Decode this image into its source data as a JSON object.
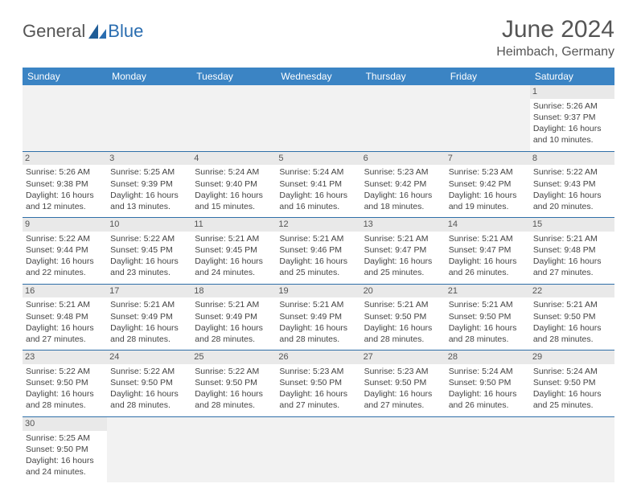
{
  "brand": {
    "first": "General",
    "second": "Blue"
  },
  "title": {
    "month": "June 2024",
    "location": "Heimbach, Germany"
  },
  "colors": {
    "header_bg": "#3b84c4",
    "header_text": "#ffffff",
    "row_divider": "#2f6fa8",
    "daynum_bg": "#e9e9e9",
    "empty_bg": "#f2f2f2",
    "text": "#444444",
    "brand_blue": "#2a6db0"
  },
  "weekdays": [
    "Sunday",
    "Monday",
    "Tuesday",
    "Wednesday",
    "Thursday",
    "Friday",
    "Saturday"
  ],
  "labels": {
    "sunrise": "Sunrise:",
    "sunset": "Sunset:",
    "daylight": "Daylight:"
  },
  "weeks": [
    [
      null,
      null,
      null,
      null,
      null,
      null,
      {
        "n": "1",
        "sunrise": "5:26 AM",
        "sunset": "9:37 PM",
        "daylight": "16 hours and 10 minutes."
      }
    ],
    [
      {
        "n": "2",
        "sunrise": "5:26 AM",
        "sunset": "9:38 PM",
        "daylight": "16 hours and 12 minutes."
      },
      {
        "n": "3",
        "sunrise": "5:25 AM",
        "sunset": "9:39 PM",
        "daylight": "16 hours and 13 minutes."
      },
      {
        "n": "4",
        "sunrise": "5:24 AM",
        "sunset": "9:40 PM",
        "daylight": "16 hours and 15 minutes."
      },
      {
        "n": "5",
        "sunrise": "5:24 AM",
        "sunset": "9:41 PM",
        "daylight": "16 hours and 16 minutes."
      },
      {
        "n": "6",
        "sunrise": "5:23 AM",
        "sunset": "9:42 PM",
        "daylight": "16 hours and 18 minutes."
      },
      {
        "n": "7",
        "sunrise": "5:23 AM",
        "sunset": "9:42 PM",
        "daylight": "16 hours and 19 minutes."
      },
      {
        "n": "8",
        "sunrise": "5:22 AM",
        "sunset": "9:43 PM",
        "daylight": "16 hours and 20 minutes."
      }
    ],
    [
      {
        "n": "9",
        "sunrise": "5:22 AM",
        "sunset": "9:44 PM",
        "daylight": "16 hours and 22 minutes."
      },
      {
        "n": "10",
        "sunrise": "5:22 AM",
        "sunset": "9:45 PM",
        "daylight": "16 hours and 23 minutes."
      },
      {
        "n": "11",
        "sunrise": "5:21 AM",
        "sunset": "9:45 PM",
        "daylight": "16 hours and 24 minutes."
      },
      {
        "n": "12",
        "sunrise": "5:21 AM",
        "sunset": "9:46 PM",
        "daylight": "16 hours and 25 minutes."
      },
      {
        "n": "13",
        "sunrise": "5:21 AM",
        "sunset": "9:47 PM",
        "daylight": "16 hours and 25 minutes."
      },
      {
        "n": "14",
        "sunrise": "5:21 AM",
        "sunset": "9:47 PM",
        "daylight": "16 hours and 26 minutes."
      },
      {
        "n": "15",
        "sunrise": "5:21 AM",
        "sunset": "9:48 PM",
        "daylight": "16 hours and 27 minutes."
      }
    ],
    [
      {
        "n": "16",
        "sunrise": "5:21 AM",
        "sunset": "9:48 PM",
        "daylight": "16 hours and 27 minutes."
      },
      {
        "n": "17",
        "sunrise": "5:21 AM",
        "sunset": "9:49 PM",
        "daylight": "16 hours and 28 minutes."
      },
      {
        "n": "18",
        "sunrise": "5:21 AM",
        "sunset": "9:49 PM",
        "daylight": "16 hours and 28 minutes."
      },
      {
        "n": "19",
        "sunrise": "5:21 AM",
        "sunset": "9:49 PM",
        "daylight": "16 hours and 28 minutes."
      },
      {
        "n": "20",
        "sunrise": "5:21 AM",
        "sunset": "9:50 PM",
        "daylight": "16 hours and 28 minutes."
      },
      {
        "n": "21",
        "sunrise": "5:21 AM",
        "sunset": "9:50 PM",
        "daylight": "16 hours and 28 minutes."
      },
      {
        "n": "22",
        "sunrise": "5:21 AM",
        "sunset": "9:50 PM",
        "daylight": "16 hours and 28 minutes."
      }
    ],
    [
      {
        "n": "23",
        "sunrise": "5:22 AM",
        "sunset": "9:50 PM",
        "daylight": "16 hours and 28 minutes."
      },
      {
        "n": "24",
        "sunrise": "5:22 AM",
        "sunset": "9:50 PM",
        "daylight": "16 hours and 28 minutes."
      },
      {
        "n": "25",
        "sunrise": "5:22 AM",
        "sunset": "9:50 PM",
        "daylight": "16 hours and 28 minutes."
      },
      {
        "n": "26",
        "sunrise": "5:23 AM",
        "sunset": "9:50 PM",
        "daylight": "16 hours and 27 minutes."
      },
      {
        "n": "27",
        "sunrise": "5:23 AM",
        "sunset": "9:50 PM",
        "daylight": "16 hours and 27 minutes."
      },
      {
        "n": "28",
        "sunrise": "5:24 AM",
        "sunset": "9:50 PM",
        "daylight": "16 hours and 26 minutes."
      },
      {
        "n": "29",
        "sunrise": "5:24 AM",
        "sunset": "9:50 PM",
        "daylight": "16 hours and 25 minutes."
      }
    ],
    [
      {
        "n": "30",
        "sunrise": "5:25 AM",
        "sunset": "9:50 PM",
        "daylight": "16 hours and 24 minutes."
      },
      null,
      null,
      null,
      null,
      null,
      null
    ]
  ]
}
